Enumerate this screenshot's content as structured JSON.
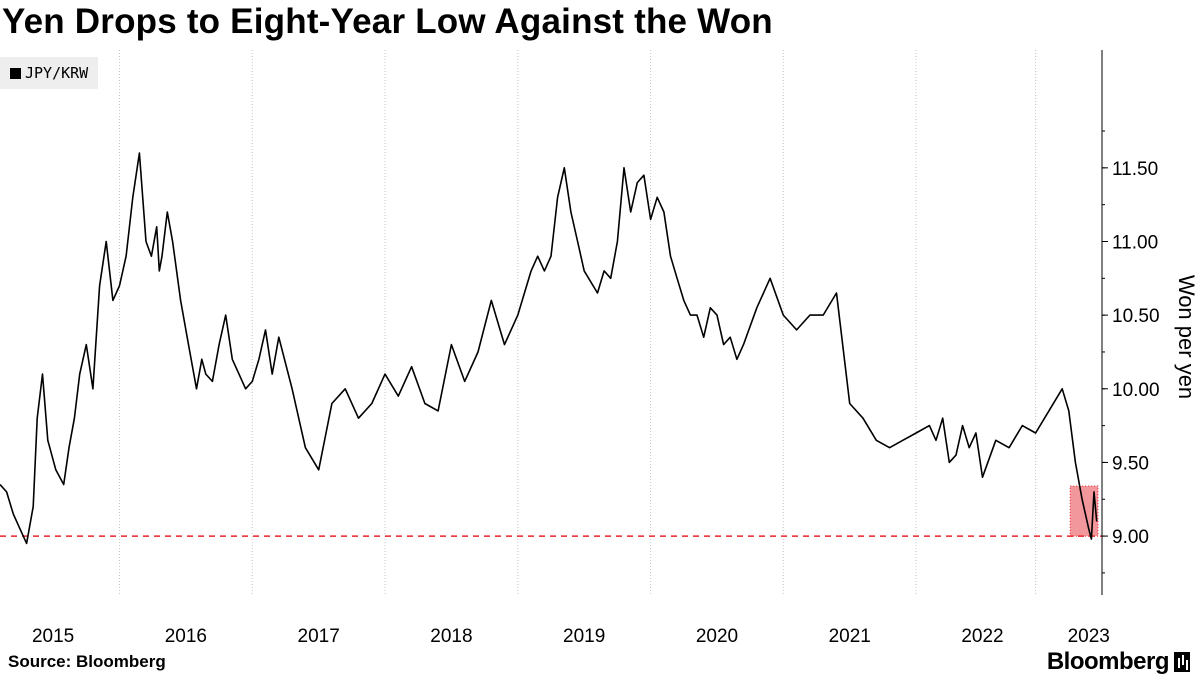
{
  "title": "Yen Drops to Eight-Year Low Against the Won",
  "legend": {
    "label": "JPY/KRW"
  },
  "source": "Source: Bloomberg",
  "brand": "Bloomberg",
  "colors": {
    "line": "#000000",
    "threshold": "#e8242b",
    "highlight": "#f0858a",
    "grid": "#c8c8c8"
  },
  "chart_data": {
    "type": "line",
    "title": "Yen Drops to Eight-Year Low Against the Won",
    "xlabel": "",
    "ylabel": "Won per yen",
    "xlim": [
      2015.0,
      2023.3
    ],
    "ylim": [
      8.6,
      12.3
    ],
    "y_ticks": [
      9.0,
      9.5,
      10.0,
      10.5,
      11.0,
      11.5
    ],
    "y_tick_labels": [
      "9.00",
      "9.50",
      "10.00",
      "10.50",
      "11.00",
      "11.50"
    ],
    "x_tick_labels": [
      "2015",
      "2016",
      "2017",
      "2018",
      "2019",
      "2020",
      "2021",
      "2022",
      "2023"
    ],
    "x_tick_positions": [
      2015.4,
      2016.4,
      2017.4,
      2018.4,
      2019.4,
      2020.4,
      2021.4,
      2022.4,
      2023.2
    ],
    "grid": "vertical",
    "legend_position": "top-left",
    "reference_line": {
      "y": 9.0,
      "style": "dashed",
      "color": "#e8242b"
    },
    "highlight_box": {
      "x": [
        2023.06,
        2023.27
      ],
      "y": [
        9.0,
        9.34
      ],
      "color": "#f0858a"
    },
    "series": [
      {
        "name": "JPY/KRW",
        "x": [
          2015.0,
          2015.05,
          2015.1,
          2015.15,
          2015.2,
          2015.25,
          2015.28,
          2015.32,
          2015.36,
          2015.42,
          2015.48,
          2015.52,
          2015.56,
          2015.6,
          2015.65,
          2015.7,
          2015.75,
          2015.8,
          2015.85,
          2015.9,
          2015.95,
          2016.0,
          2016.05,
          2016.1,
          2016.14,
          2016.18,
          2016.2,
          2016.22,
          2016.26,
          2016.3,
          2016.36,
          2016.42,
          2016.48,
          2016.52,
          2016.55,
          2016.6,
          2016.65,
          2016.7,
          2016.75,
          2016.8,
          2016.85,
          2016.9,
          2016.95,
          2017.0,
          2017.05,
          2017.1,
          2017.2,
          2017.3,
          2017.4,
          2017.5,
          2017.6,
          2017.7,
          2017.8,
          2017.9,
          2018.0,
          2018.1,
          2018.2,
          2018.3,
          2018.4,
          2018.5,
          2018.6,
          2018.7,
          2018.8,
          2018.9,
          2019.0,
          2019.05,
          2019.1,
          2019.15,
          2019.2,
          2019.25,
          2019.3,
          2019.35,
          2019.4,
          2019.5,
          2019.55,
          2019.6,
          2019.65,
          2019.7,
          2019.75,
          2019.8,
          2019.85,
          2019.9,
          2019.95,
          2020.0,
          2020.05,
          2020.1,
          2020.15,
          2020.2,
          2020.25,
          2020.3,
          2020.35,
          2020.4,
          2020.45,
          2020.5,
          2020.55,
          2020.6,
          2020.7,
          2020.8,
          2020.9,
          2021.0,
          2021.1,
          2021.2,
          2021.3,
          2021.4,
          2021.5,
          2021.6,
          2021.7,
          2021.8,
          2021.9,
          2022.0,
          2022.05,
          2022.1,
          2022.15,
          2022.2,
          2022.25,
          2022.3,
          2022.35,
          2022.4,
          2022.5,
          2022.6,
          2022.7,
          2022.8,
          2022.9,
          2023.0,
          2023.05,
          2023.1,
          2023.15,
          2023.2,
          2023.22,
          2023.24,
          2023.26
        ],
        "y": [
          9.35,
          9.3,
          9.15,
          9.05,
          8.95,
          9.2,
          9.8,
          10.1,
          9.65,
          9.45,
          9.35,
          9.6,
          9.8,
          10.1,
          10.3,
          10.0,
          10.7,
          11.0,
          10.6,
          10.7,
          10.9,
          11.3,
          11.6,
          11.0,
          10.9,
          11.1,
          10.8,
          10.9,
          11.2,
          11.0,
          10.6,
          10.3,
          10.0,
          10.2,
          10.1,
          10.05,
          10.3,
          10.5,
          10.2,
          10.1,
          10.0,
          10.05,
          10.2,
          10.4,
          10.1,
          10.35,
          10.0,
          9.6,
          9.45,
          9.9,
          10.0,
          9.8,
          9.9,
          10.1,
          9.95,
          10.15,
          9.9,
          9.85,
          10.3,
          10.05,
          10.25,
          10.6,
          10.3,
          10.5,
          10.8,
          10.9,
          10.8,
          10.9,
          11.3,
          11.5,
          11.2,
          11.0,
          10.8,
          10.65,
          10.8,
          10.75,
          11.0,
          11.5,
          11.2,
          11.4,
          11.45,
          11.15,
          11.3,
          11.2,
          10.9,
          10.75,
          10.6,
          10.5,
          10.5,
          10.35,
          10.55,
          10.5,
          10.3,
          10.35,
          10.2,
          10.3,
          10.55,
          10.75,
          10.5,
          10.4,
          10.5,
          10.5,
          10.65,
          9.9,
          9.8,
          9.65,
          9.6,
          9.65,
          9.7,
          9.75,
          9.65,
          9.8,
          9.5,
          9.55,
          9.75,
          9.6,
          9.7,
          9.4,
          9.65,
          9.6,
          9.75,
          9.7,
          9.85,
          10.0,
          9.85,
          9.5,
          9.25,
          9.05,
          8.98,
          9.3,
          9.1
        ]
      }
    ]
  }
}
